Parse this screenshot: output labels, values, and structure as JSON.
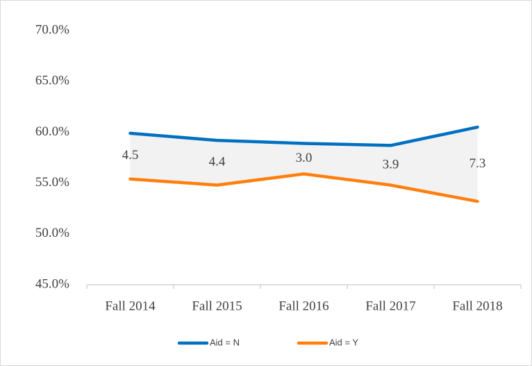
{
  "chart_data": {
    "type": "line",
    "categories": [
      "Fall 2014",
      "Fall 2015",
      "Fall 2016",
      "Fall 2017",
      "Fall 2018"
    ],
    "series": [
      {
        "name": "Aid = N",
        "color": "#0070c0",
        "values": [
          59.9,
          59.2,
          58.9,
          58.7,
          60.5
        ]
      },
      {
        "name": "Aid = Y",
        "color": "#ff7f0e",
        "values": [
          55.4,
          54.8,
          55.9,
          54.8,
          53.2
        ]
      }
    ],
    "annotations": [
      "4.5",
      "4.4",
      "3.0",
      "3.9",
      "7.3"
    ],
    "fill_between": "#f2f2f2",
    "ylim": [
      45,
      70
    ],
    "yticks": [
      {
        "value": 45,
        "label": "45.0%"
      },
      {
        "value": 50,
        "label": "50.0%"
      },
      {
        "value": 55,
        "label": "55.0%"
      },
      {
        "value": 60,
        "label": "60.0%"
      },
      {
        "value": 65,
        "label": "65.0%"
      },
      {
        "value": 70,
        "label": "70.0%"
      }
    ],
    "legend": "bottom"
  }
}
